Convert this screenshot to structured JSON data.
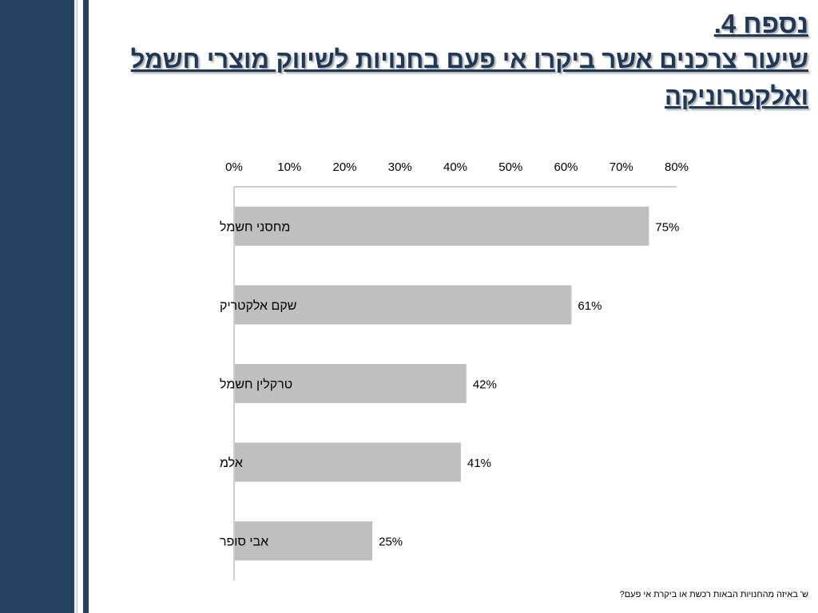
{
  "slide": {
    "title": "נספח 4.",
    "subtitle": "שיעור צרכנים אשר ביקרו אי פעם בחנויות לשיווק מוצרי חשמל ואלקטרוניקה",
    "footnote": "ש' באיזה מהחנויות הבאות רכשת או ביקרת אי פעם?"
  },
  "colors": {
    "band": "#24415f",
    "title": "#1f3858",
    "bar": "#bfbfbf",
    "axis": "#bfbfbf"
  },
  "chart_data": {
    "type": "bar",
    "orientation": "horizontal",
    "categories": [
      "מחסני חשמל",
      "שקם אלקטריק",
      "טרקלין חשמל",
      "אלמ",
      "אבי סופר"
    ],
    "values": [
      75,
      61,
      42,
      41,
      25
    ],
    "value_labels": [
      "75%",
      "61%",
      "42%",
      "41%",
      "25%"
    ],
    "x_ticks": [
      "0%",
      "10%",
      "20%",
      "30%",
      "40%",
      "50%",
      "60%",
      "70%",
      "80%"
    ],
    "xlim": [
      0,
      80
    ],
    "x_axis_position": "top",
    "grid": false,
    "legend": false
  }
}
